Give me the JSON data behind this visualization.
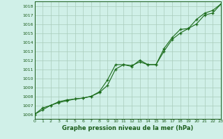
{
  "line1_x": [
    0,
    1,
    2,
    3,
    4,
    5,
    6,
    7,
    8,
    9,
    10,
    11,
    12,
    13,
    14,
    15,
    16,
    17,
    18,
    19,
    20,
    21,
    22,
    23
  ],
  "line1_y": [
    1006.0,
    1006.7,
    1007.0,
    1007.4,
    1007.6,
    1007.7,
    1007.8,
    1008.0,
    1008.5,
    1009.8,
    1011.5,
    1011.5,
    1011.4,
    1011.8,
    1011.5,
    1011.5,
    1013.0,
    1014.3,
    1015.0,
    1015.5,
    1016.0,
    1017.0,
    1017.2,
    1018.2
  ],
  "line2_x": [
    0,
    1,
    2,
    3,
    4,
    5,
    6,
    7,
    8,
    9,
    10,
    11,
    12,
    13,
    14,
    15,
    16,
    17,
    18,
    19,
    20,
    21,
    22,
    23
  ],
  "line2_y": [
    1006.0,
    1006.5,
    1007.0,
    1007.3,
    1007.5,
    1007.7,
    1007.8,
    1008.0,
    1008.4,
    1009.2,
    1011.0,
    1011.5,
    1011.3,
    1012.0,
    1011.5,
    1011.5,
    1013.3,
    1014.5,
    1015.4,
    1015.5,
    1016.5,
    1017.2,
    1017.5,
    1018.2
  ],
  "line_color": "#1a6b1a",
  "bg_color": "#d0f0e8",
  "grid_color": "#a8ccbb",
  "text_color": "#1a5c1a",
  "xlabel": "Graphe pression niveau de la mer (hPa)",
  "xlim": [
    0,
    23
  ],
  "ylim": [
    1005.5,
    1018.5
  ],
  "yticks": [
    1006,
    1007,
    1008,
    1009,
    1010,
    1011,
    1012,
    1013,
    1014,
    1015,
    1016,
    1017,
    1018
  ],
  "xticks": [
    0,
    1,
    2,
    3,
    4,
    5,
    6,
    7,
    8,
    9,
    10,
    11,
    12,
    13,
    14,
    15,
    16,
    17,
    18,
    19,
    20,
    21,
    22,
    23
  ],
  "marker": "+",
  "marker_size": 3.5,
  "linewidth": 0.8,
  "xlabel_fontsize": 6.0,
  "tick_fontsize": 4.5
}
